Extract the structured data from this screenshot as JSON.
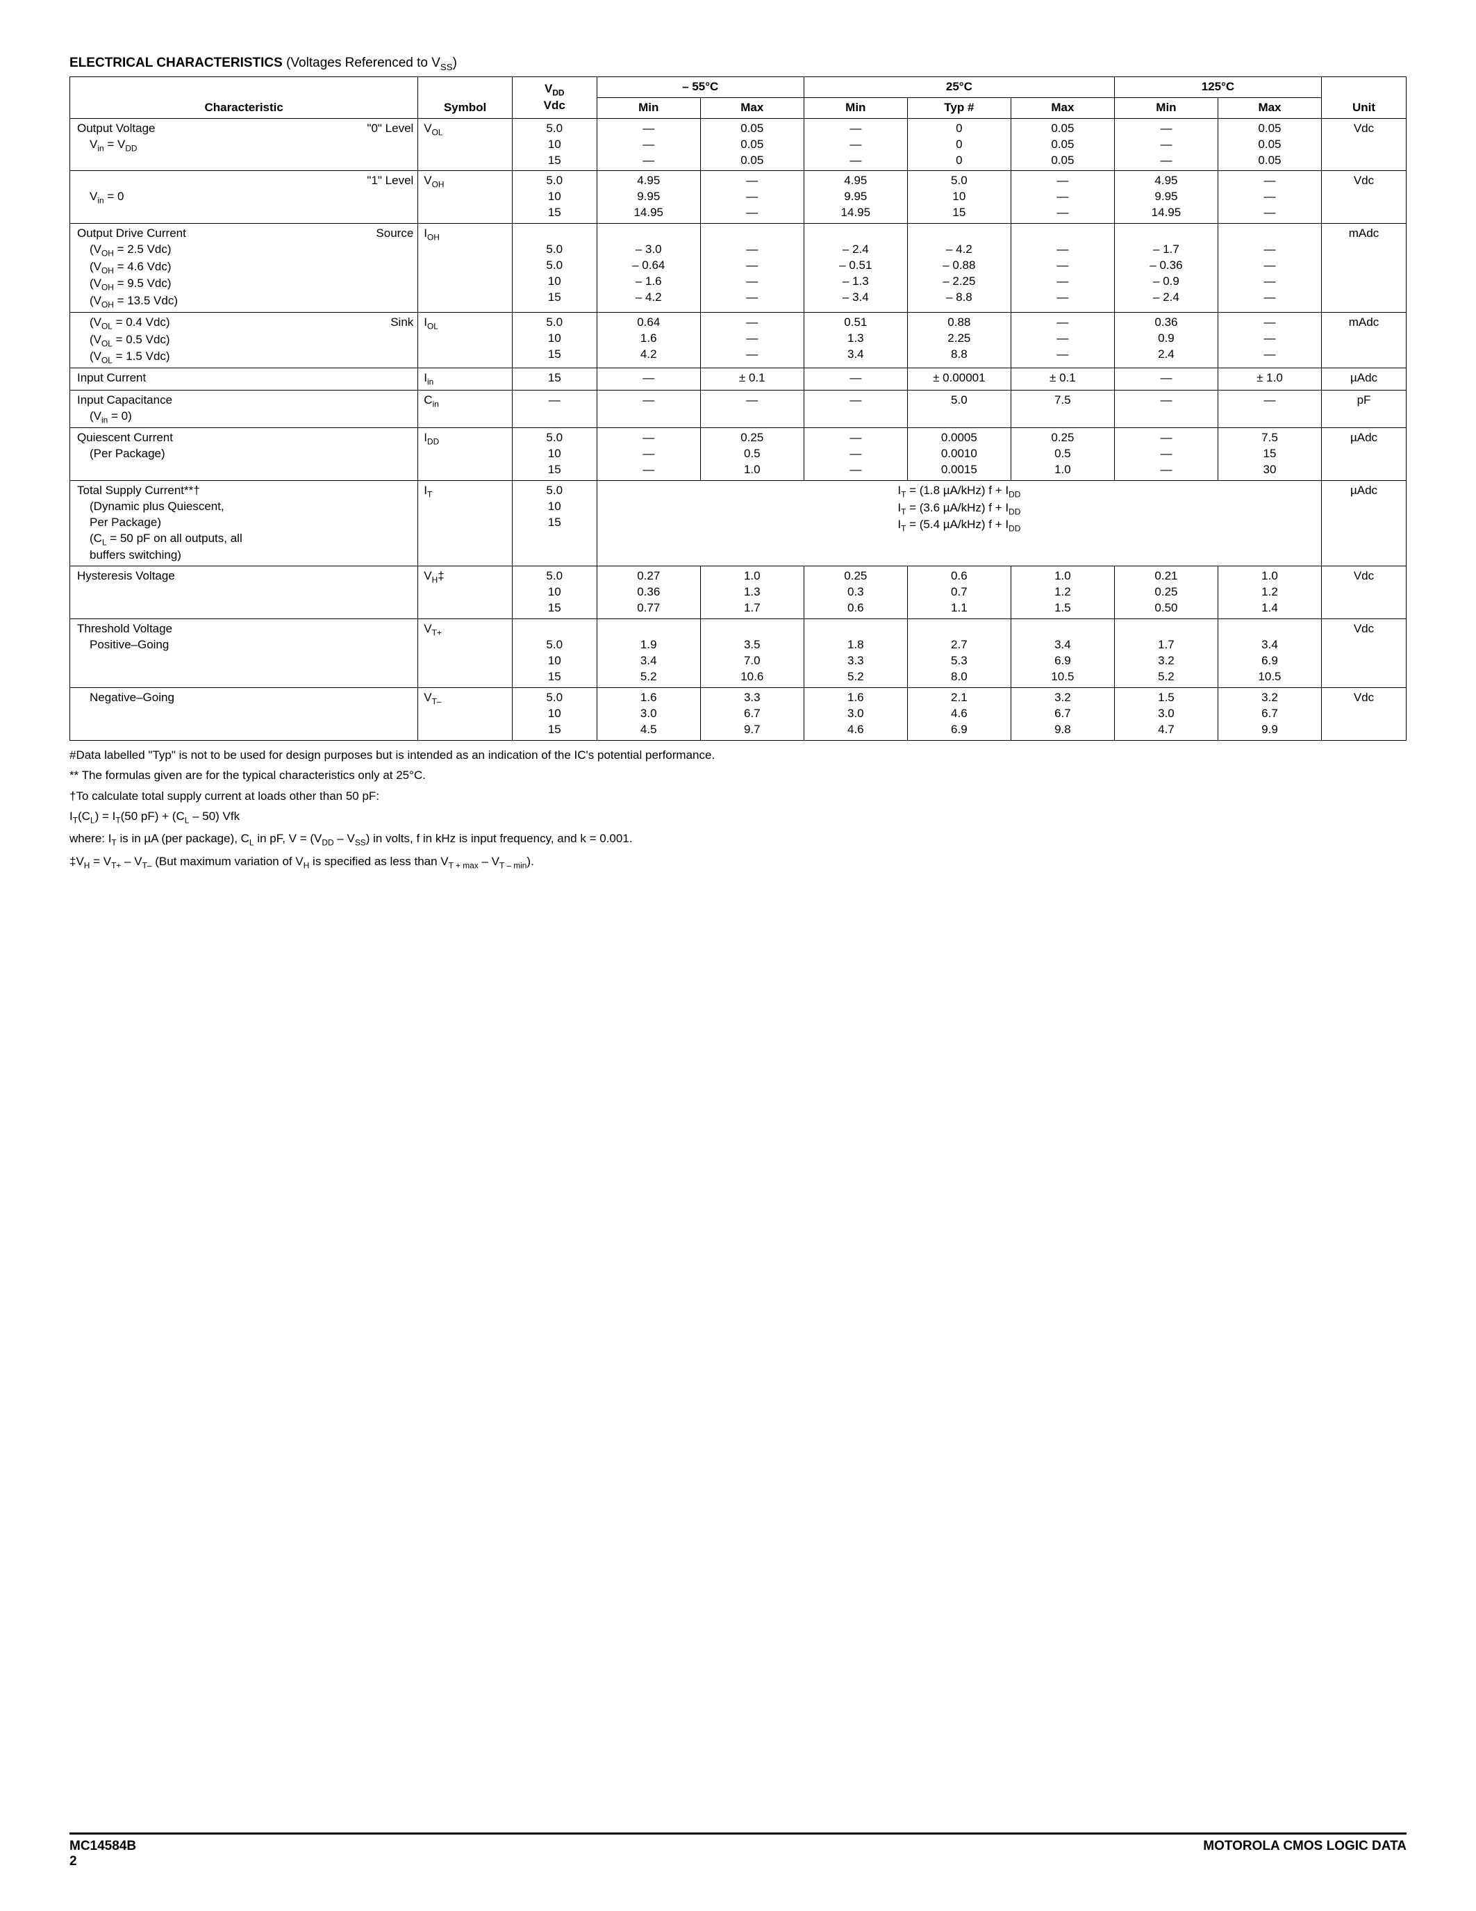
{
  "header": {
    "title": "ELECTRICAL CHARACTERISTICS",
    "subtitle": " (Voltages Referenced to V",
    "subtitle_sub": "SS",
    "subtitle_end": ")"
  },
  "columns": {
    "characteristic": "Characteristic",
    "symbol": "Symbol",
    "vdd_top": "V",
    "vdd_sub_top": "DD",
    "vdd": "Vdc",
    "t1": "– 55°C",
    "t2": "25°C",
    "t3": "125°C",
    "min": "Min",
    "typ": "Typ #",
    "max": "Max",
    "unit": "Unit"
  },
  "rows": [
    {
      "char_main": "Output Voltage",
      "char_cond": "V<sub>in</sub> =  V<sub>DD</sub>",
      "char_tag": "\"0\" Level",
      "symbol": "V<sub>OL</sub>",
      "vdd": [
        "5.0",
        "10",
        "15"
      ],
      "c1min": [
        "—",
        "—",
        "—"
      ],
      "c1max": [
        "0.05",
        "0.05",
        "0.05"
      ],
      "c2min": [
        "—",
        "—",
        "—"
      ],
      "c2typ": [
        "0",
        "0",
        "0"
      ],
      "c2max": [
        "0.05",
        "0.05",
        "0.05"
      ],
      "c3min": [
        "—",
        "—",
        "—"
      ],
      "c3max": [
        "0.05",
        "0.05",
        "0.05"
      ],
      "unit": "Vdc"
    },
    {
      "char_main": "",
      "char_cond": "V<sub>in</sub> = 0",
      "char_tag": "\"1\" Level",
      "symbol": "V<sub>OH</sub>",
      "vdd": [
        "5.0",
        "10",
        "15"
      ],
      "c1min": [
        "4.95",
        "9.95",
        "14.95"
      ],
      "c1max": [
        "—",
        "—",
        "—"
      ],
      "c2min": [
        "4.95",
        "9.95",
        "14.95"
      ],
      "c2typ": [
        "5.0",
        "10",
        "15"
      ],
      "c2max": [
        "—",
        "—",
        "—"
      ],
      "c3min": [
        "4.95",
        "9.95",
        "14.95"
      ],
      "c3max": [
        "—",
        "—",
        "—"
      ],
      "unit": "Vdc",
      "no_top_border": true
    },
    {
      "char_main": "Output Drive Current",
      "char_sub": [
        "(V<sub>OH</sub> = 2.5 Vdc)",
        "(V<sub>OH</sub> = 4.6 Vdc)",
        "(V<sub>OH</sub> = 9.5 Vdc)",
        "(V<sub>OH</sub> = 13.5 Vdc)"
      ],
      "char_tag": "Source",
      "symbol": "I<sub>OH</sub>",
      "vdd": [
        "",
        "5.0",
        "5.0",
        "10",
        "15"
      ],
      "c1min": [
        "",
        "– 3.0",
        "– 0.64",
        "– 1.6",
        "– 4.2"
      ],
      "c1max": [
        "",
        "—",
        "—",
        "—",
        "—"
      ],
      "c2min": [
        "",
        "– 2.4",
        "– 0.51",
        "– 1.3",
        "– 3.4"
      ],
      "c2typ": [
        "",
        "– 4.2",
        "– 0.88",
        "– 2.25",
        "– 8.8"
      ],
      "c2max": [
        "",
        "—",
        "—",
        "—",
        "—"
      ],
      "c3min": [
        "",
        "– 1.7",
        "– 0.36",
        "– 0.9",
        "– 2.4"
      ],
      "c3max": [
        "",
        "—",
        "—",
        "—",
        "—"
      ],
      "unit": "mAdc"
    },
    {
      "char_sub": [
        "(V<sub>OL</sub> = 0.4 Vdc)",
        "(V<sub>OL</sub> = 0.5 Vdc)",
        "(V<sub>OL</sub> = 1.5 Vdc)"
      ],
      "char_tag": "Sink",
      "symbol": "I<sub>OL</sub>",
      "vdd": [
        "5.0",
        "10",
        "15"
      ],
      "c1min": [
        "0.64",
        "1.6",
        "4.2"
      ],
      "c1max": [
        "—",
        "—",
        "—"
      ],
      "c2min": [
        "0.51",
        "1.3",
        "3.4"
      ],
      "c2typ": [
        "0.88",
        "2.25",
        "8.8"
      ],
      "c2max": [
        "—",
        "—",
        "—"
      ],
      "c3min": [
        "0.36",
        "0.9",
        "2.4"
      ],
      "c3max": [
        "—",
        "—",
        "—"
      ],
      "unit": "mAdc",
      "no_top_border": true
    },
    {
      "char_main": "Input Current",
      "symbol": "I<sub>in</sub>",
      "vdd": [
        "15"
      ],
      "c1min": [
        "—"
      ],
      "c1max": [
        "± 0.1"
      ],
      "c2min": [
        "—"
      ],
      "c2typ": [
        "± 0.00001"
      ],
      "c2max": [
        "± 0.1"
      ],
      "c3min": [
        "—"
      ],
      "c3max": [
        "± 1.0"
      ],
      "unit": "µAdc"
    },
    {
      "char_main": "Input Capacitance",
      "char_sub": [
        "(V<sub>in</sub> = 0)"
      ],
      "symbol": "C<sub>in</sub>",
      "vdd": [
        "—"
      ],
      "c1min": [
        "—"
      ],
      "c1max": [
        "—"
      ],
      "c2min": [
        "—"
      ],
      "c2typ": [
        "5.0"
      ],
      "c2max": [
        "7.5"
      ],
      "c3min": [
        "—"
      ],
      "c3max": [
        "—"
      ],
      "unit": "pF"
    },
    {
      "char_main": "Quiescent Current",
      "char_sub": [
        "(Per Package)"
      ],
      "symbol": "I<sub>DD</sub>",
      "vdd": [
        "5.0",
        "10",
        "15"
      ],
      "c1min": [
        "—",
        "—",
        "—"
      ],
      "c1max": [
        "0.25",
        "0.5",
        "1.0"
      ],
      "c2min": [
        "—",
        "—",
        "—"
      ],
      "c2typ": [
        "0.0005",
        "0.0010",
        "0.0015"
      ],
      "c2max": [
        "0.25",
        "0.5",
        "1.0"
      ],
      "c3min": [
        "—",
        "—",
        "—"
      ],
      "c3max": [
        "7.5",
        "15",
        "30"
      ],
      "unit": "µAdc"
    },
    {
      "char_main": "Total Supply Current**†",
      "char_sub": [
        "(Dynamic plus Quiescent,",
        "Per Package)",
        "(C<sub>L</sub> = 50 pF on all outputs, all",
        "buffers switching)"
      ],
      "symbol": "I<sub>T</sub>",
      "vdd": [
        "5.0",
        "10",
        "15"
      ],
      "formula": [
        "I<sub>T</sub> = (1.8 µA/kHz) f + I<sub>DD</sub>",
        "I<sub>T</sub> = (3.6 µA/kHz) f + I<sub>DD</sub>",
        "I<sub>T</sub> = (5.4 µA/kHz) f + I<sub>DD</sub>"
      ],
      "unit": "µAdc"
    },
    {
      "char_main": "Hysteresis Voltage",
      "symbol": "V<sub>H</sub>‡",
      "vdd": [
        "5.0",
        "10",
        "15"
      ],
      "c1min": [
        "0.27",
        "0.36",
        "0.77"
      ],
      "c1max": [
        "1.0",
        "1.3",
        "1.7"
      ],
      "c2min": [
        "0.25",
        "0.3",
        "0.6"
      ],
      "c2typ": [
        "0.6",
        "0.7",
        "1.1"
      ],
      "c2max": [
        "1.0",
        "1.2",
        "1.5"
      ],
      "c3min": [
        "0.21",
        "0.25",
        "0.50"
      ],
      "c3max": [
        "1.0",
        "1.2",
        "1.4"
      ],
      "unit": "Vdc"
    },
    {
      "char_main": "Threshold Voltage",
      "char_sub": [
        "Positive–Going"
      ],
      "symbol": "V<sub>T+</sub>",
      "vdd": [
        "",
        "5.0",
        "10",
        "15"
      ],
      "c1min": [
        "",
        "1.9",
        "3.4",
        "5.2"
      ],
      "c1max": [
        "",
        "3.5",
        "7.0",
        "10.6"
      ],
      "c2min": [
        "",
        "1.8",
        "3.3",
        "5.2"
      ],
      "c2typ": [
        "",
        "2.7",
        "5.3",
        "8.0"
      ],
      "c2max": [
        "",
        "3.4",
        "6.9",
        "10.5"
      ],
      "c3min": [
        "",
        "1.7",
        "3.2",
        "5.2"
      ],
      "c3max": [
        "",
        "3.4",
        "6.9",
        "10.5"
      ],
      "unit": "Vdc"
    },
    {
      "char_sub": [
        "Negative–Going"
      ],
      "symbol": "V<sub>T–</sub>",
      "vdd": [
        "5.0",
        "10",
        "15"
      ],
      "c1min": [
        "1.6",
        "3.0",
        "4.5"
      ],
      "c1max": [
        "3.3",
        "6.7",
        "9.7"
      ],
      "c2min": [
        "1.6",
        "3.0",
        "4.6"
      ],
      "c2typ": [
        "2.1",
        "4.6",
        "6.9"
      ],
      "c2max": [
        "3.2",
        "6.7",
        "9.8"
      ],
      "c3min": [
        "1.5",
        "3.0",
        "4.7"
      ],
      "c3max": [
        "3.2",
        "6.7",
        "9.9"
      ],
      "unit": "Vdc",
      "no_top_border": true
    }
  ],
  "notes": {
    "n1": "#Data labelled \"Typ\" is not to be used for design purposes but is intended as an indication of the IC's potential performance.",
    "n2": "** The formulas given are for the typical characteristics only at 25°C.",
    "n3": "†To calculate total supply current at loads other than 50 pF:",
    "n4": "I<sub>T</sub>(C<sub>L</sub>) = I<sub>T</sub>(50 pF) + (C<sub>L</sub> – 50) Vfk",
    "n5": "where: I<sub>T</sub> is in µA (per package), C<sub>L</sub> in pF, V = (V<sub>DD</sub> – V<sub>SS</sub>) in volts, f in kHz is input frequency, and k = 0.001.",
    "n6": "‡V<sub>H</sub> = V<sub>T+</sub> – V<sub>T–</sub> (But maximum variation of V<sub>H</sub> is specified as less than V<sub>T + max</sub> – V<sub>T – min</sub>)."
  },
  "footer": {
    "left_top": "MC14584B",
    "left_bottom": "2",
    "right": "MOTOROLA CMOS LOGIC DATA"
  }
}
